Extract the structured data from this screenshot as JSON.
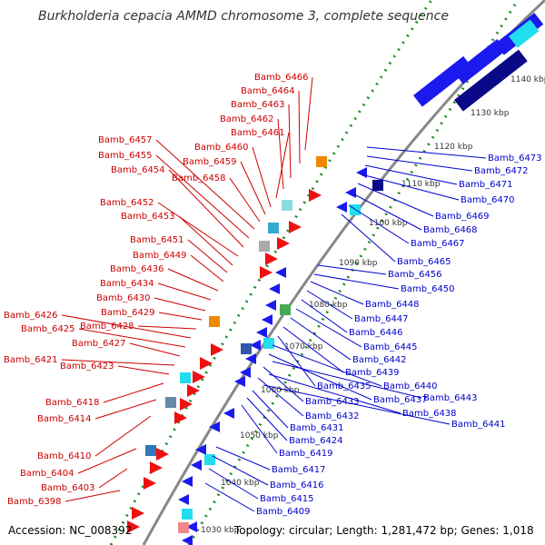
{
  "title": "Burkholderia cepacia AMMD chromosome 3, complete sequence",
  "footer": {
    "accession": "Accession: NC_008392",
    "summary": "Topology: circular; Length: 1,281,472 bp; Genes: 1,018"
  },
  "colors": {
    "reverse_label": "#cc0000",
    "forward_label": "#0000cc",
    "backbone": "#888888",
    "gc_dots": "#228b22",
    "forward_gene": "#1a1aee",
    "reverse_gene": "#ee1111",
    "cyan_block": "#22ddee",
    "navy_block": "#0a0a88"
  },
  "kbp_ticks": [
    "1030 kbp",
    "1040 kbp",
    "1050 kbp",
    "1060 kbp",
    "1070 kbp",
    "1080 kbp",
    "1090 kbp",
    "1100 kbp",
    "1110 kbp",
    "1120 kbp",
    "1130 kbp",
    "1140 kbp"
  ],
  "left_labels": [
    "Bamb_6466",
    "Bamb_6464",
    "Bamb_6463",
    "Bamb_6462",
    "Bamb_6461",
    "Bamb_6460",
    "Bamb_6459",
    "Bamb_6458",
    "Bamb_6457",
    "Bamb_6455",
    "Bamb_6454",
    "Bamb_6452",
    "Bamb_6453",
    "Bamb_6451",
    "Bamb_6449",
    "Bamb_6436",
    "Bamb_6434",
    "Bamb_6430",
    "Bamb_6429",
    "Bamb_6428",
    "Bamb_6426",
    "Bamb_6425",
    "Bamb_6427",
    "Bamb_6421",
    "Bamb_6423",
    "Bamb_6418",
    "Bamb_6414",
    "Bamb_6410",
    "Bamb_6404",
    "Bamb_6403",
    "Bamb_6398"
  ],
  "right_labels": [
    "Bamb_6473",
    "Bamb_6472",
    "Bamb_6471",
    "Bamb_6470",
    "Bamb_6469",
    "Bamb_6468",
    "Bamb_6467",
    "Bamb_6465",
    "Bamb_6456",
    "Bamb_6450",
    "Bamb_6448",
    "Bamb_6447",
    "Bamb_6446",
    "Bamb_6445",
    "Bamb_6442",
    "Bamb_6439",
    "Bamb_6435",
    "Bamb_6440",
    "Bamb_6437",
    "Bamb_6443",
    "Bamb_6433",
    "Bamb_6438",
    "Bamb_6432",
    "Bamb_6441",
    "Bamb_6431",
    "Bamb_6424",
    "Bamb_6419",
    "Bamb_6417",
    "Bamb_6416",
    "Bamb_6415",
    "Bamb_6409"
  ]
}
